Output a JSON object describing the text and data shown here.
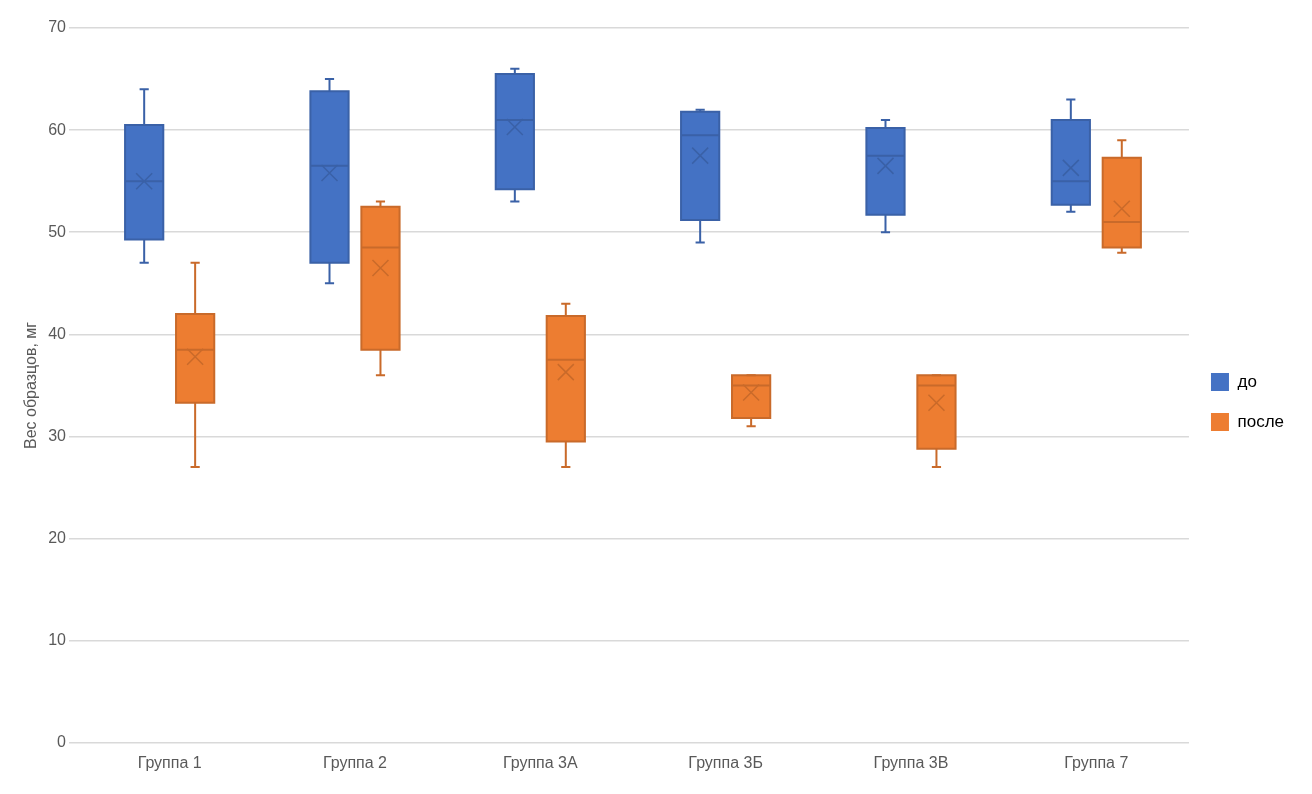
{
  "chart_data": {
    "type": "box",
    "ylabel": "Вес образцов, мг",
    "categories": [
      "Группа 1",
      "Группа 2",
      "Группа 3А",
      "Группа 3Б",
      "Группа 3В",
      "Группа 7"
    ],
    "ylim": [
      0,
      70
    ],
    "yticks": [
      0,
      10,
      20,
      30,
      40,
      50,
      60,
      70
    ],
    "grid": "y",
    "legend": "right",
    "marker": "cross",
    "series": [
      {
        "name": "до",
        "color": "#4472c4",
        "boxes": [
          {
            "low": 47,
            "q1": 49.3,
            "median": 55,
            "q3": 60.5,
            "high": 64,
            "mean": 55
          },
          {
            "low": 45,
            "q1": 47,
            "median": 56.5,
            "q3": 63.8,
            "high": 65,
            "mean": 55.8
          },
          {
            "low": 53,
            "q1": 54.2,
            "median": 61,
            "q3": 65.5,
            "high": 66,
            "mean": 60.3
          },
          {
            "low": 49,
            "q1": 51.2,
            "median": 59.5,
            "q3": 61.8,
            "high": 62,
            "mean": 57.5
          },
          {
            "low": 50,
            "q1": 51.7,
            "median": 57.5,
            "q3": 60.2,
            "high": 61,
            "mean": 56.5
          },
          {
            "low": 52,
            "q1": 52.7,
            "median": 55,
            "q3": 61,
            "high": 63,
            "mean": 56.3
          }
        ]
      },
      {
        "name": "после",
        "color": "#ed7d31",
        "boxes": [
          {
            "low": 27,
            "q1": 33.3,
            "median": 38.5,
            "q3": 42,
            "high": 47,
            "mean": 37.8
          },
          {
            "low": 36,
            "q1": 38.5,
            "median": 48.5,
            "q3": 52.5,
            "high": 53,
            "mean": 46.5
          },
          {
            "low": 27,
            "q1": 29.5,
            "median": 37.5,
            "q3": 41.8,
            "high": 43,
            "mean": 36.3
          },
          {
            "low": 31,
            "q1": 31.8,
            "median": 35,
            "q3": 36,
            "high": 36,
            "mean": 34.3
          },
          {
            "low": 27,
            "q1": 28.8,
            "median": 35,
            "q3": 36,
            "high": 36,
            "mean": 33.3
          },
          {
            "low": 48,
            "q1": 48.5,
            "median": 51,
            "q3": 57.3,
            "high": 59,
            "mean": 52.3
          }
        ]
      }
    ]
  }
}
